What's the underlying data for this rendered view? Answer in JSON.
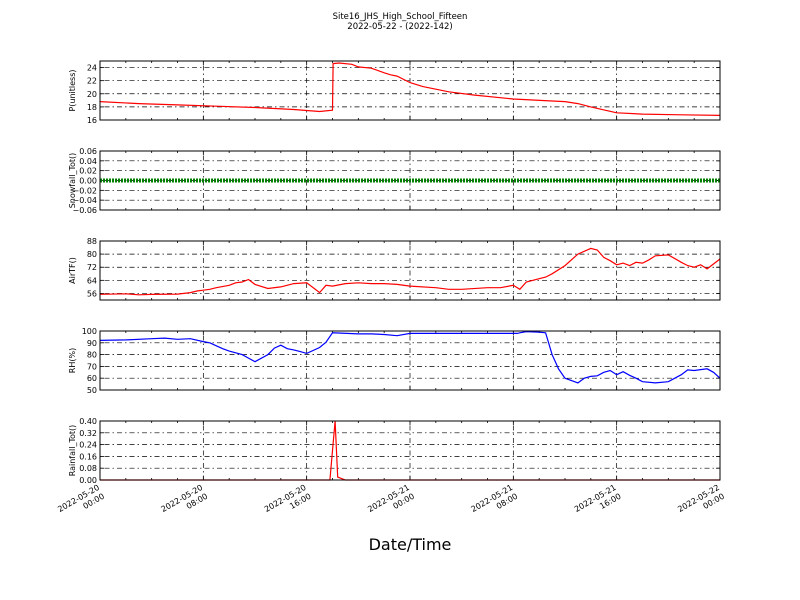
{
  "figure": {
    "title_line1": "Site16_JHS_High_School_Fifteen",
    "title_line2": "2022-05-22 - (2022-142)",
    "xlabel": "Date/Time",
    "x_ticks": [
      {
        "l1": "2022-05-20",
        "l2": "00:00",
        "h": 0
      },
      {
        "l1": "2022-05-20",
        "l2": "08:00",
        "h": 8
      },
      {
        "l1": "2022-05-20",
        "l2": "16:00",
        "h": 16
      },
      {
        "l1": "2022-05-21",
        "l2": "00:00",
        "h": 24
      },
      {
        "l1": "2022-05-21",
        "l2": "08:00",
        "h": 32
      },
      {
        "l1": "2022-05-21",
        "l2": "16:00",
        "h": 40
      },
      {
        "l1": "2022-05-22",
        "l2": "00:00",
        "h": 48
      }
    ]
  },
  "chart_data": [
    {
      "type": "line",
      "ylabel": "P(unitless)",
      "ylim": [
        16,
        25
      ],
      "yticks": [
        16,
        18,
        20,
        22,
        24
      ],
      "ytick_labels": [
        "16",
        "18",
        "20",
        "22",
        "24"
      ],
      "color": "#ff0000",
      "x": [
        0,
        3,
        6,
        9,
        12,
        15,
        17,
        18,
        18.05,
        18.5,
        19.5,
        20,
        21,
        22,
        22.5,
        23,
        24,
        25,
        27,
        29,
        32,
        35,
        36,
        37,
        38,
        40,
        42,
        45,
        48
      ],
      "values": [
        18.8,
        18.5,
        18.3,
        18.1,
        17.9,
        17.6,
        17.3,
        17.5,
        24.6,
        24.7,
        24.5,
        24.1,
        23.9,
        23.2,
        22.9,
        22.7,
        21.7,
        21.1,
        20.3,
        19.8,
        19.2,
        18.9,
        18.8,
        18.5,
        18.0,
        17.1,
        16.9,
        16.8,
        16.7
      ]
    },
    {
      "type": "line",
      "ylabel": "Snowfall_Tot()",
      "ylim": [
        -0.06,
        0.06
      ],
      "yticks": [
        -0.06,
        -0.04,
        -0.02,
        0.0,
        0.02,
        0.04,
        0.06
      ],
      "ytick_labels": [
        "−0.06",
        "−0.04",
        "−0.02",
        "0.00",
        "0.02",
        "0.04",
        "0.06"
      ],
      "color": "#007f00",
      "x": [
        0,
        48
      ],
      "values": [
        0,
        0
      ]
    },
    {
      "type": "line",
      "ylabel": "AirTF()",
      "ylim": [
        52,
        88
      ],
      "yticks": [
        56,
        64,
        72,
        80,
        88
      ],
      "ytick_labels": [
        "56",
        "64",
        "72",
        "80",
        "88"
      ],
      "color": "#ff0000",
      "x": [
        0,
        2,
        3,
        4,
        6,
        7,
        7.5,
        8,
        8.5,
        9,
        10,
        10.5,
        11,
        11.5,
        12,
        13,
        14,
        15,
        16,
        17,
        17.5,
        18,
        19,
        20,
        21,
        22,
        23,
        24,
        26,
        27,
        28,
        30,
        31,
        32,
        32.5,
        33,
        34,
        34.5,
        35,
        36,
        37,
        38,
        38.5,
        39,
        39.5,
        40,
        40.5,
        41,
        41.5,
        42,
        42.5,
        43,
        44,
        45,
        45.5,
        46,
        46.5,
        47,
        48
      ],
      "values": [
        55.5,
        55.8,
        55.2,
        55.4,
        55.6,
        56.5,
        57.5,
        58,
        58.5,
        59.5,
        61,
        62.5,
        63,
        64.5,
        61.5,
        59,
        60,
        62,
        62.5,
        56.5,
        61,
        60.5,
        62,
        62.5,
        62,
        62,
        61.5,
        60.5,
        59.5,
        58.5,
        58.5,
        59.5,
        59.5,
        61,
        58.5,
        63,
        65,
        66,
        68,
        73,
        80,
        83.5,
        82.5,
        78,
        76,
        73.5,
        74.5,
        73,
        75,
        74.5,
        76.5,
        79,
        79.5,
        75,
        73,
        72,
        73.5,
        71,
        77
      ]
    },
    {
      "type": "line",
      "ylabel": "RH(%)",
      "ylim": [
        50,
        100
      ],
      "yticks": [
        50,
        60,
        70,
        80,
        90,
        100
      ],
      "ytick_labels": [
        "50",
        "60",
        "70",
        "80",
        "90",
        "100"
      ],
      "color": "#0000ff",
      "x": [
        0,
        2,
        4,
        5,
        6,
        7,
        8,
        8.5,
        9,
        9.5,
        10,
        11,
        11.5,
        12,
        13,
        13.5,
        14,
        14.5,
        15,
        15.5,
        16,
        17,
        17.5,
        18,
        20,
        21,
        22,
        23,
        24,
        32.3,
        32.5,
        33,
        34,
        34.5,
        35,
        35.5,
        36,
        37,
        37.5,
        38,
        38.5,
        39,
        39.5,
        40,
        40.5,
        41,
        41.5,
        42,
        43,
        44,
        45,
        45.5,
        46,
        47,
        47.5,
        48
      ],
      "values": [
        92,
        92.5,
        93.5,
        94,
        93,
        93.5,
        91,
        90,
        87.5,
        85,
        83,
        80,
        77,
        74,
        80,
        85.5,
        88,
        85,
        84,
        82.5,
        81,
        86,
        90.5,
        98.5,
        97.5,
        97.5,
        97,
        96,
        98,
        98,
        98.5,
        99.5,
        99,
        98.5,
        80,
        68,
        60,
        56,
        60,
        61.5,
        62,
        65,
        66.5,
        63,
        65.5,
        62.5,
        60,
        57,
        56,
        57,
        63,
        67,
        66.5,
        68,
        65,
        60
      ]
    },
    {
      "type": "line",
      "ylabel": "Rainfall_Tot()",
      "ylim": [
        0,
        0.4
      ],
      "yticks": [
        0.0,
        0.08,
        0.16,
        0.24,
        0.32,
        0.4
      ],
      "ytick_labels": [
        "0.00",
        "0.08",
        "0.16",
        "0.24",
        "0.32",
        "0.40"
      ],
      "color": "#ff0000",
      "x": [
        0,
        17.8,
        18,
        18.2,
        18.4,
        19,
        48
      ],
      "values": [
        0,
        0,
        0.2,
        0.4,
        0.02,
        0,
        0
      ]
    }
  ]
}
